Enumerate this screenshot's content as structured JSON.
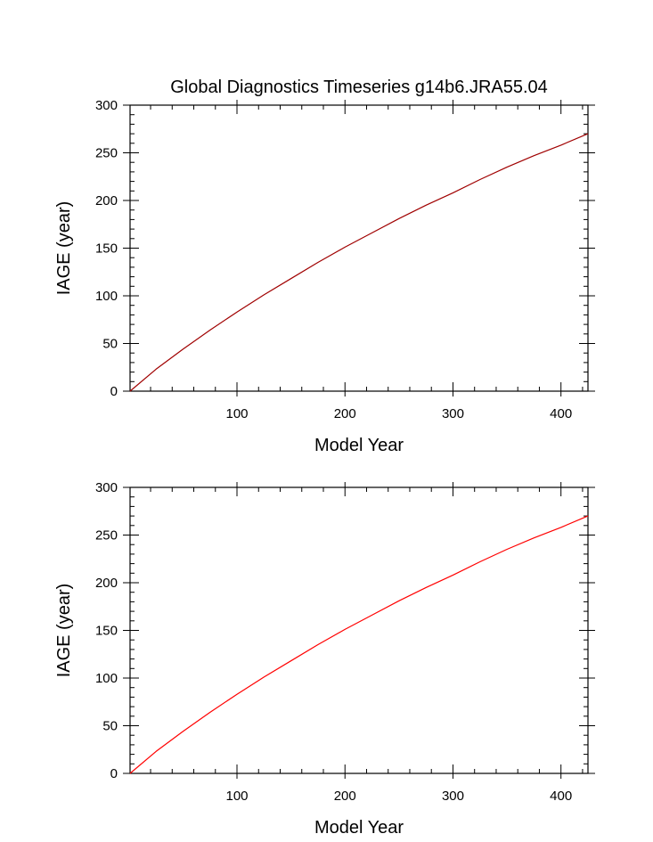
{
  "chart_data": [
    {
      "type": "line",
      "title": "Global Diagnostics Timeseries g14b6.JRA55.04",
      "xlabel": "Model Year",
      "ylabel": "IAGE (year)",
      "xlim": [
        1,
        425
      ],
      "ylim": [
        0,
        300
      ],
      "xticks": [
        100,
        200,
        300,
        400
      ],
      "xticklabels": [
        "100",
        "200",
        "300",
        "400"
      ],
      "yticks": [
        0,
        50,
        100,
        150,
        200,
        250,
        300
      ],
      "yticklabels": [
        "0",
        "50",
        "100",
        "150",
        "200",
        "250",
        "300"
      ],
      "grid": false,
      "series": [
        {
          "color": "#a00000",
          "x": [
            1,
            25,
            50,
            75,
            100,
            125,
            150,
            175,
            200,
            225,
            250,
            275,
            300,
            325,
            350,
            375,
            400,
            425
          ],
          "y": [
            0,
            23,
            44,
            64,
            83,
            101,
            118,
            135,
            151,
            166,
            181,
            195,
            208,
            222,
            235,
            247,
            258,
            270
          ]
        }
      ]
    },
    {
      "type": "line",
      "title": "",
      "xlabel": "Model Year",
      "ylabel": "IAGE (year)",
      "xlim": [
        1,
        425
      ],
      "ylim": [
        0,
        300
      ],
      "xticks": [
        100,
        200,
        300,
        400
      ],
      "xticklabels": [
        "100",
        "200",
        "300",
        "400"
      ],
      "yticks": [
        0,
        50,
        100,
        150,
        200,
        250,
        300
      ],
      "yticklabels": [
        "0",
        "50",
        "100",
        "150",
        "200",
        "250",
        "300"
      ],
      "grid": false,
      "series": [
        {
          "color": "#ff0000",
          "x": [
            1,
            25,
            50,
            75,
            100,
            125,
            150,
            175,
            200,
            225,
            250,
            275,
            300,
            325,
            350,
            375,
            400,
            425
          ],
          "y": [
            0,
            23,
            44,
            64,
            83,
            101,
            118,
            135,
            151,
            166,
            181,
            195,
            208,
            222,
            235,
            247,
            258,
            270
          ]
        }
      ]
    }
  ]
}
